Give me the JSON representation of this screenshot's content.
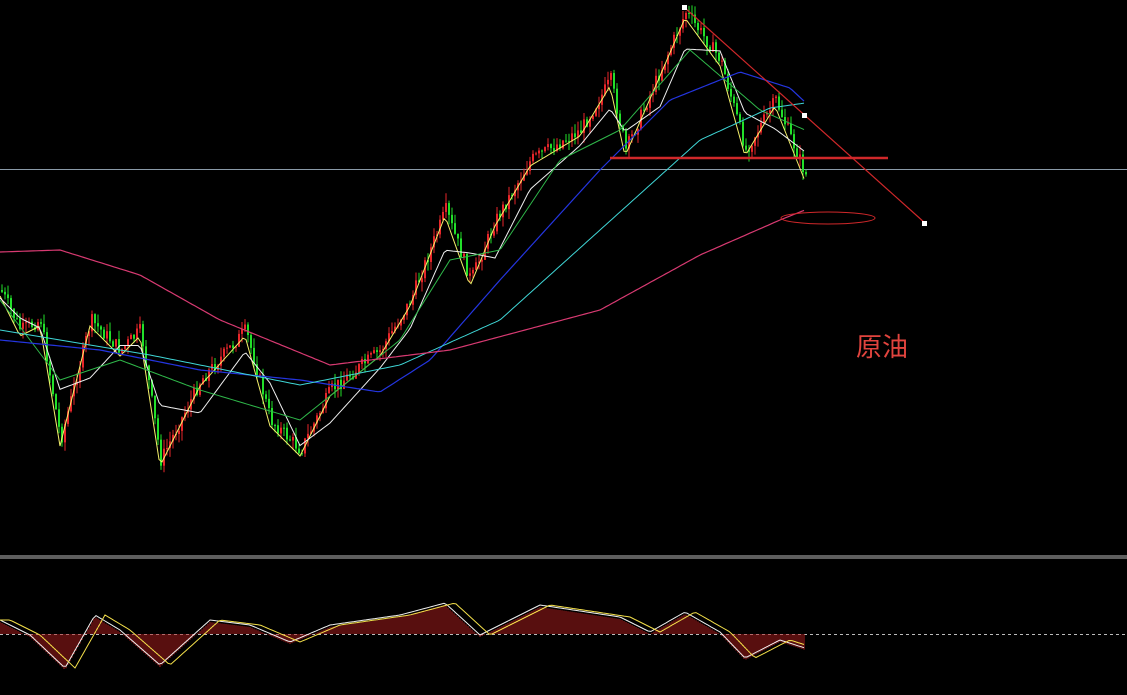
{
  "annotation": {
    "label": "原油"
  }
}
